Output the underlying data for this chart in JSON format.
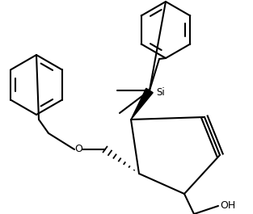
{
  "bg_color": "#ffffff",
  "line_color": "#000000",
  "lw": 1.5,
  "figsize": [
    3.13,
    2.65
  ],
  "dpi": 100,
  "Si_label": "Si",
  "O_label": "O",
  "OH_label": "OH"
}
